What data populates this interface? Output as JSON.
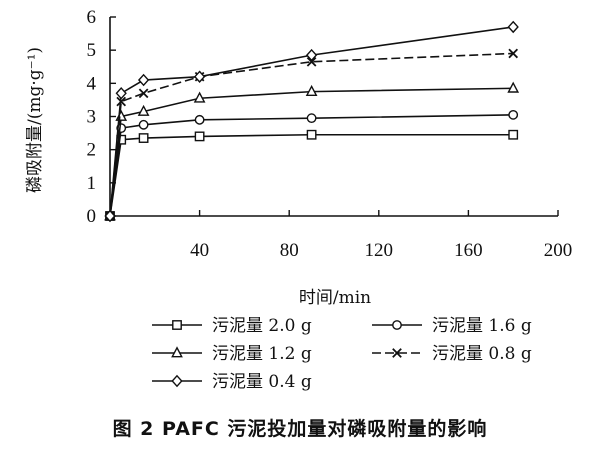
{
  "chart_data": {
    "type": "line",
    "title": "",
    "xlabel": "时间/min",
    "ylabel": "磷吸附量/(mg·g⁻¹)",
    "xlim": [
      0,
      200
    ],
    "ylim": [
      0,
      6
    ],
    "xticks": [
      40,
      80,
      120,
      160,
      200
    ],
    "xtick_labels": [
      "40",
      "80",
      "120",
      "160",
      "200"
    ],
    "yticks": [
      0,
      1,
      2,
      3,
      4,
      5,
      6
    ],
    "ytick_labels": [
      "0",
      "1",
      "2",
      "3",
      "4",
      "5",
      "6"
    ],
    "grid": false,
    "legend_position": "bottom",
    "series": [
      {
        "name": "污泥量 2.0 g",
        "marker": "square",
        "x": [
          0,
          5,
          15,
          40,
          90,
          180
        ],
        "y": [
          0,
          2.3,
          2.35,
          2.4,
          2.45,
          2.45
        ]
      },
      {
        "name": "污泥量 1.6 g",
        "marker": "circle",
        "x": [
          0,
          5,
          15,
          40,
          90,
          180
        ],
        "y": [
          0,
          2.65,
          2.75,
          2.9,
          2.95,
          3.05
        ]
      },
      {
        "name": "污泥量 1.2 g",
        "marker": "triangle",
        "x": [
          0,
          5,
          15,
          40,
          90,
          180
        ],
        "y": [
          0,
          3.0,
          3.15,
          3.55,
          3.75,
          3.85
        ]
      },
      {
        "name": "污泥量 0.8 g",
        "marker": "x",
        "x": [
          0,
          5,
          15,
          40,
          90,
          180
        ],
        "y": [
          0,
          3.45,
          3.7,
          4.2,
          4.65,
          4.9
        ]
      },
      {
        "name": "污泥量 0.4 g",
        "marker": "diamond",
        "x": [
          0,
          5,
          15,
          40,
          90,
          180
        ],
        "y": [
          0,
          3.7,
          4.1,
          4.2,
          4.85,
          5.7
        ]
      }
    ]
  },
  "caption": "图 2  PAFC 污泥投加量对磷吸附量的影响"
}
